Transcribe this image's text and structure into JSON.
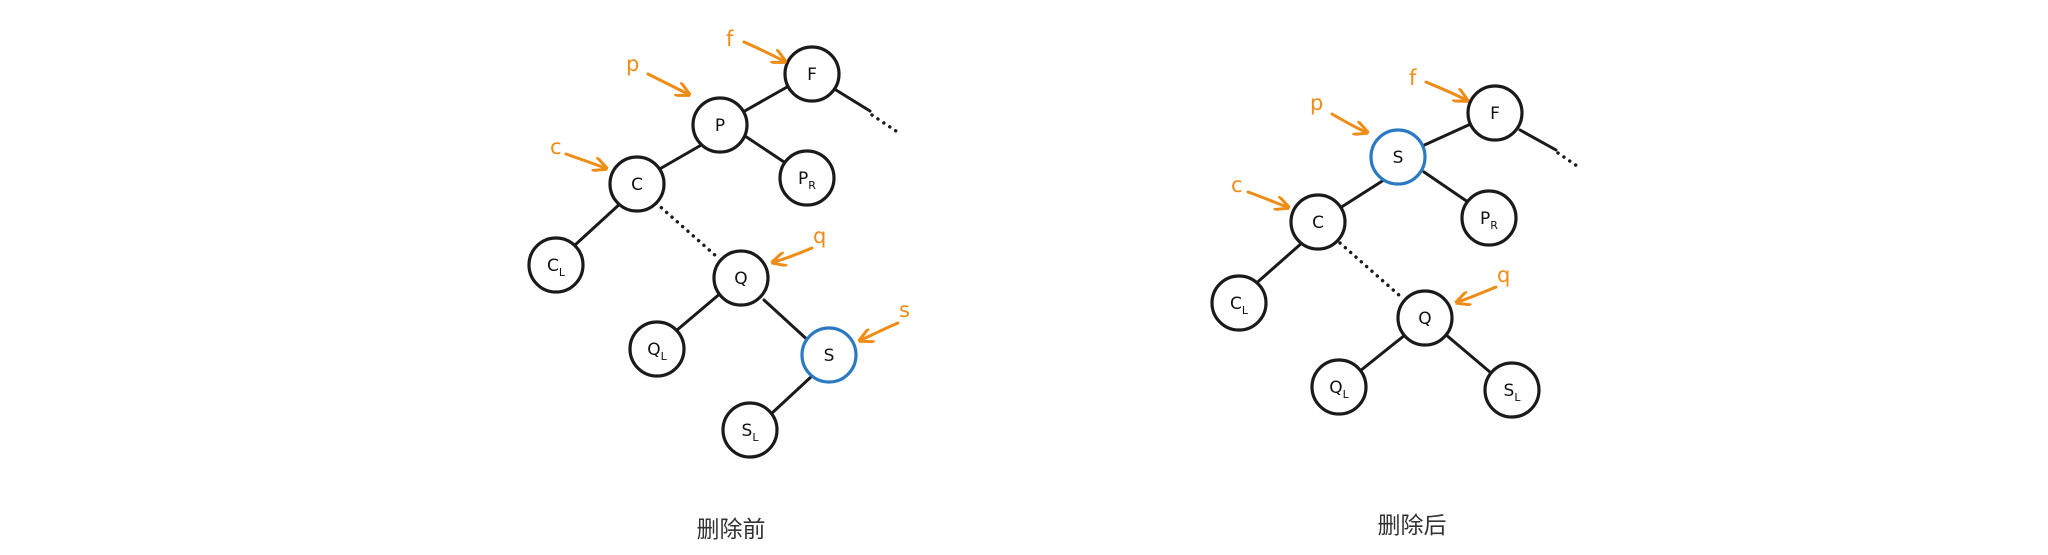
{
  "before": {
    "caption": "删除前",
    "nodes": {
      "F": {
        "main": "F",
        "sub": ""
      },
      "P": {
        "main": "P",
        "sub": ""
      },
      "PR": {
        "main": "P",
        "sub": "R"
      },
      "C": {
        "main": "C",
        "sub": ""
      },
      "CL": {
        "main": "C",
        "sub": "L"
      },
      "Q": {
        "main": "Q",
        "sub": ""
      },
      "QL": {
        "main": "Q",
        "sub": "L"
      },
      "S": {
        "main": "S",
        "sub": ""
      },
      "SL": {
        "main": "S",
        "sub": "L"
      }
    },
    "pointers": {
      "f": "f",
      "p": "p",
      "c": "c",
      "q": "q",
      "s": "s"
    }
  },
  "after": {
    "caption": "删除后",
    "nodes": {
      "F": {
        "main": "F",
        "sub": ""
      },
      "S": {
        "main": "S",
        "sub": ""
      },
      "PR": {
        "main": "P",
        "sub": "R"
      },
      "C": {
        "main": "C",
        "sub": ""
      },
      "CL": {
        "main": "C",
        "sub": "L"
      },
      "Q": {
        "main": "Q",
        "sub": ""
      },
      "QL": {
        "main": "Q",
        "sub": "L"
      },
      "SL": {
        "main": "S",
        "sub": "L"
      }
    },
    "pointers": {
      "f": "f",
      "p": "p",
      "c": "c",
      "q": "q"
    }
  },
  "colors": {
    "pointer": "#ef8c16",
    "highlight": "#2a79c2",
    "ink": "#1a1a1a"
  }
}
